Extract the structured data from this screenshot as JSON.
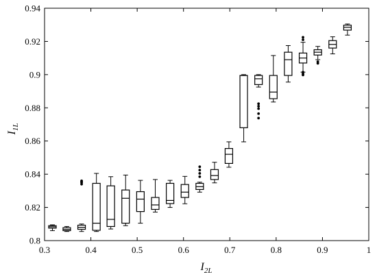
{
  "chart_data": {
    "type": "box",
    "xlabel": {
      "main": "I",
      "sub": "2L"
    },
    "ylabel": {
      "main": "I",
      "sub": "1L"
    },
    "xlim": [
      0.3,
      1.0
    ],
    "ylim": [
      0.8,
      0.94
    ],
    "x_ticks": [
      "0.3",
      "0.4",
      "0.5",
      "0.6",
      "0.7",
      "0.8",
      "0.9",
      "1"
    ],
    "y_ticks": [
      "0.8",
      "0.82",
      "0.84",
      "0.86",
      "0.88",
      "0.9",
      "0.92",
      "0.94"
    ],
    "grid": false,
    "boxes": [
      {
        "x": 0.317,
        "whisker_low": 0.806,
        "q1": 0.8075,
        "median": 0.8083,
        "q3": 0.809,
        "whisker_high": 0.8095,
        "outliers": []
      },
      {
        "x": 0.348,
        "whisker_low": 0.8055,
        "q1": 0.806,
        "median": 0.8068,
        "q3": 0.8078,
        "whisker_high": 0.8085,
        "outliers": []
      },
      {
        "x": 0.38,
        "whisker_low": 0.8055,
        "q1": 0.8068,
        "median": 0.808,
        "q3": 0.8093,
        "whisker_high": 0.81,
        "outliers": [
          0.834,
          0.835,
          0.8355,
          0.836
        ]
      },
      {
        "x": 0.412,
        "whisker_low": 0.8055,
        "q1": 0.8062,
        "median": 0.8105,
        "q3": 0.8345,
        "whisker_high": 0.8405,
        "outliers": []
      },
      {
        "x": 0.443,
        "whisker_low": 0.807,
        "q1": 0.8085,
        "median": 0.8128,
        "q3": 0.833,
        "whisker_high": 0.8385,
        "outliers": []
      },
      {
        "x": 0.475,
        "whisker_low": 0.809,
        "q1": 0.8105,
        "median": 0.8255,
        "q3": 0.8305,
        "whisker_high": 0.8395,
        "outliers": []
      },
      {
        "x": 0.507,
        "whisker_low": 0.8105,
        "q1": 0.8175,
        "median": 0.825,
        "q3": 0.8295,
        "whisker_high": 0.8363,
        "outliers": []
      },
      {
        "x": 0.539,
        "whisker_low": 0.8172,
        "q1": 0.8188,
        "median": 0.8215,
        "q3": 0.826,
        "whisker_high": 0.8368,
        "outliers": []
      },
      {
        "x": 0.571,
        "whisker_low": 0.82,
        "q1": 0.8223,
        "median": 0.8242,
        "q3": 0.8345,
        "whisker_high": 0.8363,
        "outliers": []
      },
      {
        "x": 0.603,
        "whisker_low": 0.8222,
        "q1": 0.826,
        "median": 0.8292,
        "q3": 0.8338,
        "whisker_high": 0.8387,
        "outliers": []
      },
      {
        "x": 0.635,
        "whisker_low": 0.8292,
        "q1": 0.8308,
        "median": 0.8325,
        "q3": 0.8345,
        "whisker_high": 0.8352,
        "outliers": [
          0.8385,
          0.8405,
          0.8425,
          0.8445
        ]
      },
      {
        "x": 0.667,
        "whisker_low": 0.8348,
        "q1": 0.8368,
        "median": 0.8392,
        "q3": 0.8428,
        "whisker_high": 0.8472,
        "outliers": []
      },
      {
        "x": 0.698,
        "whisker_low": 0.8442,
        "q1": 0.8465,
        "median": 0.852,
        "q3": 0.8555,
        "whisker_high": 0.8595,
        "outliers": []
      },
      {
        "x": 0.73,
        "whisker_low": 0.8595,
        "q1": 0.868,
        "median": 0.8995,
        "q3": 0.8995,
        "whisker_high": 0.9,
        "outliers": []
      },
      {
        "x": 0.762,
        "whisker_low": 0.8925,
        "q1": 0.894,
        "median": 0.8975,
        "q3": 0.8995,
        "whisker_high": 0.9,
        "outliers": [
          0.8738,
          0.8765,
          0.8795,
          0.881,
          0.8825
        ]
      },
      {
        "x": 0.794,
        "whisker_low": 0.8835,
        "q1": 0.8855,
        "median": 0.8895,
        "q3": 0.8995,
        "whisker_high": 0.9115,
        "outliers": []
      },
      {
        "x": 0.826,
        "whisker_low": 0.8955,
        "q1": 0.8995,
        "median": 0.909,
        "q3": 0.9135,
        "whisker_high": 0.9175,
        "outliers": []
      },
      {
        "x": 0.858,
        "whisker_low": 0.9015,
        "q1": 0.907,
        "median": 0.91,
        "q3": 0.913,
        "whisker_high": 0.9195,
        "outliers": [
          0.8998,
          0.9005,
          0.9015,
          0.921,
          0.9225
        ]
      },
      {
        "x": 0.89,
        "whisker_low": 0.909,
        "q1": 0.9118,
        "median": 0.9135,
        "q3": 0.915,
        "whisker_high": 0.917,
        "outliers": [
          0.9068,
          0.9078
        ]
      },
      {
        "x": 0.922,
        "whisker_low": 0.9125,
        "q1": 0.916,
        "median": 0.9182,
        "q3": 0.9205,
        "whisker_high": 0.9228,
        "outliers": []
      },
      {
        "x": 0.954,
        "whisker_low": 0.9238,
        "q1": 0.9268,
        "median": 0.9285,
        "q3": 0.9298,
        "whisker_high": 0.9305,
        "outliers": []
      }
    ]
  }
}
